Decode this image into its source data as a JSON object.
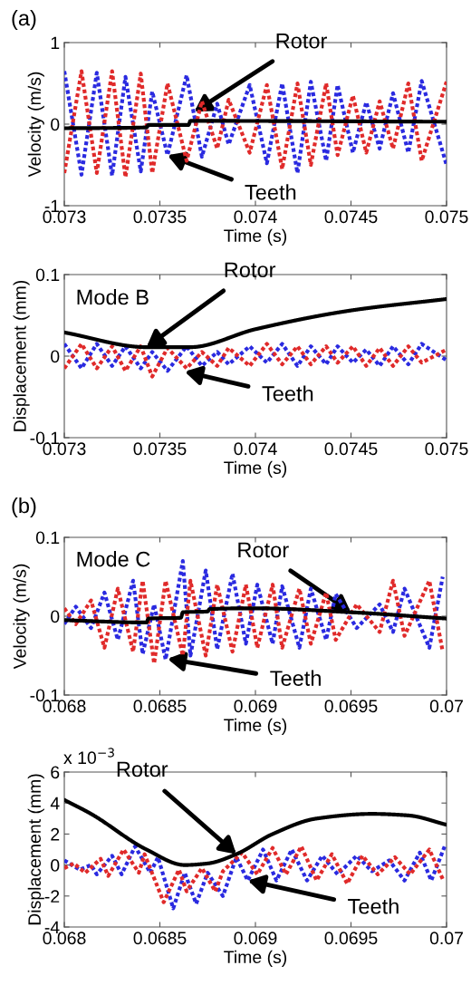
{
  "chart_data": [
    {
      "type": "line",
      "xlabel": "Time (s)",
      "ylabel": "Velocity (m/s)",
      "xlim": [
        0.073,
        0.075
      ],
      "ylim": [
        -1,
        1
      ],
      "xticks": [
        0.073,
        0.0735,
        0.074,
        0.0745,
        0.075
      ],
      "yticks": [
        -1,
        0,
        1
      ],
      "grid": false,
      "legend": false,
      "series": [
        {
          "color": "#2a2ae0",
          "line_style": "dotted",
          "x": [
            0.073,
            0.07309,
            0.07317,
            0.07325,
            0.07332,
            0.0734,
            0.07346,
            0.07354,
            0.07364,
            0.07372,
            0.0738,
            0.07386,
            0.07397,
            0.07406,
            0.07414,
            0.07422,
            0.07429,
            0.07437,
            0.07443,
            0.07451,
            0.07458,
            0.07465,
            0.07472,
            0.0748,
            0.07487,
            0.075
          ],
          "values": [
            0.65,
            -0.62,
            0.63,
            -0.63,
            0.58,
            -0.58,
            0.4,
            -0.38,
            0.6,
            -0.4,
            0.25,
            -0.25,
            0.48,
            -0.48,
            0.5,
            -0.6,
            0.52,
            -0.45,
            0.48,
            -0.35,
            0.27,
            -0.3,
            0.38,
            -0.35,
            0.53,
            -0.5
          ]
        },
        {
          "color": "#e02a2a",
          "line_style": "dotted",
          "x": [
            0.073,
            0.07309,
            0.07317,
            0.07325,
            0.07332,
            0.0734,
            0.07346,
            0.07354,
            0.07364,
            0.07372,
            0.0738,
            0.07386,
            0.07397,
            0.07406,
            0.07414,
            0.07422,
            0.07429,
            0.07437,
            0.07443,
            0.07451,
            0.07458,
            0.07465,
            0.07472,
            0.0748,
            0.07487,
            0.075
          ],
          "values": [
            -0.6,
            0.65,
            -0.6,
            0.65,
            -0.65,
            0.62,
            -0.6,
            0.5,
            -0.45,
            0.28,
            -0.3,
            0.3,
            -0.35,
            0.48,
            -0.55,
            0.5,
            -0.5,
            0.5,
            -0.38,
            0.35,
            -0.35,
            0.28,
            -0.3,
            0.5,
            -0.45,
            0.52
          ]
        },
        {
          "color": "#000000",
          "line_style": "solid",
          "x": [
            0.073,
            0.07343,
            0.07344,
            0.07365,
            0.07366,
            0.075
          ],
          "values": [
            -0.05,
            -0.04,
            -0.01,
            -0.01,
            0.04,
            0.03
          ]
        }
      ],
      "annotations": [
        "(a)",
        {
          "text": "Rotor",
          "x": 0.07368,
          "y": 0.15
        },
        {
          "text": "Teeth",
          "x": 0.07354,
          "y": -0.38
        }
      ]
    },
    {
      "type": "line",
      "xlabel": "Time (s)",
      "ylabel": "Displacement (mm)",
      "xlim": [
        0.073,
        0.075
      ],
      "ylim": [
        -0.1,
        0.1
      ],
      "xticks": [
        0.073,
        0.0735,
        0.074,
        0.0745,
        0.075
      ],
      "yticks": [
        -0.1,
        0,
        0.1
      ],
      "grid": false,
      "legend": false,
      "series": [
        {
          "color": "#2a2ae0",
          "line_style": "dotted",
          "x": [
            0.073,
            0.07309,
            0.07317,
            0.07325,
            0.07332,
            0.0734,
            0.07346,
            0.07354,
            0.07364,
            0.07372,
            0.0738,
            0.07386,
            0.07397,
            0.07406,
            0.07414,
            0.07422,
            0.07429,
            0.07437,
            0.07443,
            0.07451,
            0.07458,
            0.07465,
            0.07472,
            0.0748,
            0.07487,
            0.075
          ],
          "values": [
            0.015,
            -0.015,
            0.015,
            -0.012,
            0.012,
            -0.015,
            0.005,
            -0.018,
            0.012,
            -0.012,
            0.005,
            -0.01,
            0.012,
            -0.008,
            0.015,
            -0.012,
            0.012,
            -0.01,
            0.012,
            -0.008,
            0.008,
            -0.012,
            0.012,
            -0.01,
            0.015,
            -0.005
          ]
        },
        {
          "color": "#e02a2a",
          "line_style": "dotted",
          "x": [
            0.073,
            0.07309,
            0.07317,
            0.07325,
            0.07332,
            0.0734,
            0.07346,
            0.07354,
            0.07364,
            0.07372,
            0.0738,
            0.07386,
            0.07397,
            0.07406,
            0.07414,
            0.07422,
            0.07429,
            0.07437,
            0.07443,
            0.07451,
            0.07458,
            0.07465,
            0.07472,
            0.0748,
            0.07487,
            0.075
          ],
          "values": [
            -0.015,
            0.015,
            -0.015,
            0.012,
            -0.018,
            0.012,
            -0.025,
            0.01,
            -0.015,
            0.005,
            -0.012,
            0.01,
            -0.012,
            0.015,
            -0.01,
            0.012,
            -0.01,
            0.012,
            -0.008,
            0.012,
            -0.012,
            0.01,
            -0.012,
            0.012,
            -0.008,
            0.008
          ]
        },
        {
          "color": "#000000",
          "line_style": "solid",
          "x": [
            0.073,
            0.07343,
            0.07366,
            0.074,
            0.0745,
            0.075
          ],
          "values": [
            0.029,
            0.011,
            0.011,
            0.033,
            0.056,
            0.07
          ]
        }
      ],
      "annotations": [
        "Mode B",
        {
          "text": "Rotor",
          "x": 0.07343,
          "y": 0.011
        },
        {
          "text": "Teeth",
          "x": 0.07363,
          "y": -0.019
        }
      ]
    },
    {
      "type": "line",
      "xlabel": "Time (s)",
      "ylabel": "Velocity (m/s)",
      "xlim": [
        0.068,
        0.07
      ],
      "ylim": [
        -0.1,
        0.1
      ],
      "xticks": [
        0.068,
        0.0685,
        0.069,
        0.0695,
        0.07
      ],
      "yticks": [
        -0.1,
        0,
        0.1
      ],
      "grid": false,
      "legend": false,
      "series": [
        {
          "color": "#2a2ae0",
          "line_style": "dotted",
          "x": [
            0.068,
            0.06806,
            0.06814,
            0.06821,
            0.06828,
            0.06836,
            0.06841,
            0.06847,
            0.06853,
            0.06862,
            0.06866,
            0.06874,
            0.0688,
            0.06888,
            0.06895,
            0.06901,
            0.06909,
            0.06914,
            0.06923,
            0.06929,
            0.06937,
            0.06942,
            0.06953,
            0.06965,
            0.06972,
            0.06978,
            0.06991,
            0.06998
          ],
          "values": [
            -0.01,
            0.012,
            -0.015,
            0.03,
            -0.03,
            0.045,
            -0.048,
            0.015,
            -0.055,
            0.07,
            -0.05,
            0.058,
            -0.042,
            0.054,
            -0.035,
            0.04,
            -0.035,
            0.038,
            -0.04,
            0.035,
            -0.03,
            0.028,
            -0.015,
            0.015,
            -0.02,
            0.035,
            -0.04,
            0.05
          ]
        },
        {
          "color": "#e02a2a",
          "line_style": "dotted",
          "x": [
            0.068,
            0.06806,
            0.06814,
            0.06821,
            0.06828,
            0.06836,
            0.06841,
            0.06847,
            0.06853,
            0.06862,
            0.06866,
            0.06874,
            0.0688,
            0.06888,
            0.06895,
            0.06901,
            0.06909,
            0.06914,
            0.06923,
            0.06929,
            0.06937,
            0.06942,
            0.06953,
            0.06965,
            0.06972,
            0.06978,
            0.06991,
            0.06998
          ],
          "values": [
            0.01,
            -0.01,
            0.02,
            -0.04,
            0.035,
            -0.045,
            0.045,
            -0.06,
            0.045,
            -0.05,
            0.045,
            -0.05,
            0.04,
            -0.045,
            0.04,
            -0.04,
            0.04,
            -0.04,
            0.035,
            -0.035,
            0.03,
            -0.03,
            0.015,
            -0.02,
            0.045,
            -0.025,
            0.045,
            -0.045
          ]
        },
        {
          "color": "#000000",
          "line_style": "solid",
          "x": [
            0.068,
            0.06843,
            0.06844,
            0.06861,
            0.06862,
            0.06875,
            0.06876,
            0.069,
            0.0695,
            0.07
          ],
          "values": [
            -0.005,
            -0.008,
            -0.003,
            -0.002,
            0.005,
            0.006,
            0.009,
            0.01,
            0.005,
            -0.003
          ]
        }
      ],
      "annotations": [
        "(b)",
        "Mode C",
        {
          "text": "Rotor",
          "x": 0.0695,
          "y": 0.005
        },
        {
          "text": "Teeth",
          "x": 0.06854,
          "y": -0.054
        }
      ]
    },
    {
      "type": "line",
      "xlabel": "Time (s)",
      "ylabel": "Displacement (mm)",
      "xlim": [
        0.068,
        0.07
      ],
      "ylim": [
        -4,
        6
      ],
      "xticks": [
        0.068,
        0.0685,
        0.069,
        0.0695,
        0.07
      ],
      "yticks": [
        -4,
        -2,
        0,
        2,
        4,
        6
      ],
      "grid": false,
      "legend": false,
      "series": [
        {
          "color": "#2a2ae0",
          "line_style": "dotted",
          "x": [
            0.068,
            0.06808,
            0.06814,
            0.06817,
            0.06825,
            0.0683,
            0.06837,
            0.06845,
            0.06849,
            0.06857,
            0.06863,
            0.06869,
            0.06875,
            0.06883,
            0.0689,
            0.06896,
            0.06904,
            0.06911,
            0.06919,
            0.06927,
            0.06935,
            0.06943,
            0.06953,
            0.06961,
            0.0697,
            0.06978,
            0.06986,
            0.06992,
            0.06999
          ],
          "values": [
            0.3,
            -0.3,
            0.0,
            -0.6,
            0.6,
            -0.6,
            1.2,
            -0.5,
            0.5,
            -2.8,
            -0.5,
            -2.5,
            -0.5,
            -2.0,
            0.5,
            -1.0,
            1.0,
            -1.0,
            1.0,
            -1.0,
            0.6,
            -0.6,
            0.6,
            -0.4,
            0.3,
            -1.0,
            0.8,
            -1.0,
            1.2
          ]
        },
        {
          "color": "#e02a2a",
          "line_style": "dotted",
          "x": [
            0.068,
            0.06805,
            0.06811,
            0.06819,
            0.06823,
            0.06831,
            0.06839,
            0.06842,
            0.06852,
            0.0686,
            0.06864,
            0.06872,
            0.06879,
            0.06883,
            0.06893,
            0.06901,
            0.06909,
            0.06916,
            0.06924,
            0.06932,
            0.0694,
            0.06948,
            0.06956,
            0.06964,
            0.06973,
            0.06981,
            0.06991,
            0.06998
          ],
          "values": [
            -0.2,
            0.1,
            -0.5,
            0.4,
            -0.7,
            1.0,
            -0.5,
            0.7,
            -2.4,
            -0.3,
            -1.7,
            -0.2,
            -1.7,
            -0.4,
            0.8,
            -0.6,
            1.1,
            -0.6,
            1.2,
            -1.0,
            0.7,
            -1.2,
            0.6,
            -0.6,
            0.5,
            -0.6,
            1.0,
            -0.9
          ]
        },
        {
          "color": "#000000",
          "line_style": "solid",
          "x": [
            0.068,
            0.06814,
            0.06843,
            0.06863,
            0.06875,
            0.0689,
            0.06909,
            0.06932,
            0.06961,
            0.0698,
            0.07
          ],
          "values": [
            4.2,
            3.3,
            1.0,
            0.0,
            0.1,
            0.7,
            2.0,
            3.0,
            3.3,
            3.2,
            2.6
          ]
        }
      ],
      "annotations": [
        "x 10$^{−3}$",
        {
          "text": "Rotor",
          "x": 0.0689,
          "y": 0.7
        },
        {
          "text": "Teeth",
          "x": 0.06896,
          "y": -1.0
        }
      ]
    }
  ]
}
